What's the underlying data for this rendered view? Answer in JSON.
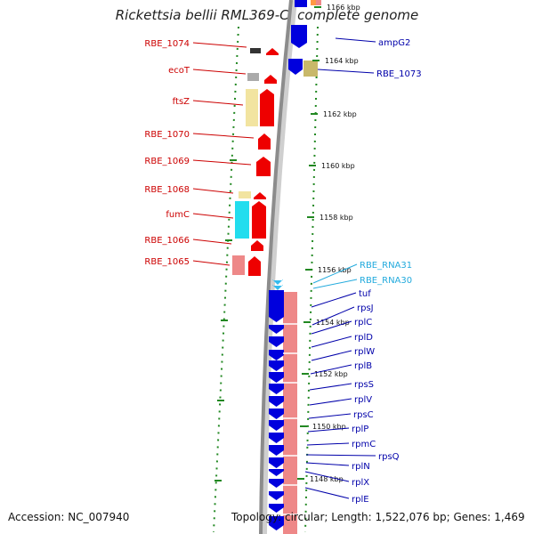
{
  "title": "Rickettsia bellii RML369-C, complete genome",
  "footer": {
    "accession": "Accession: NC_007940",
    "topology": "Topology: circular; Length: 1,522,076 bp; Genes: 1,469"
  },
  "colors": {
    "left_label": "#cc0000",
    "right_label": "#0000aa",
    "rna_label": "#22aadd",
    "forward_gene": "#ee0000",
    "reverse_gene": "#0000dd",
    "pseudo": "#777777",
    "orf_yellow": "#f2e4a0",
    "orf_cyan": "#22ddee",
    "orf_pink": "#ee8888",
    "track_dots": "#228822"
  },
  "scale_ticks": [
    "1166 kbp",
    "1164 kbp",
    "1162 kbp",
    "1160 kbp",
    "1158 kbp",
    "1156 kbp",
    "1154 kbp",
    "1152 kbp",
    "1150 kbp",
    "1148 kbp"
  ],
  "left_genes": [
    "RBE_1074",
    "ecoT",
    "ftsZ",
    "RBE_1070",
    "RBE_1069",
    "RBE_1068",
    "fumC",
    "RBE_1066",
    "RBE_1065"
  ],
  "right_genes": [
    "ampG2",
    "RBE_1073",
    "tuf",
    "rpsJ",
    "rplC",
    "rplD",
    "rplW",
    "rplB",
    "rpsS",
    "rplV",
    "rpsC",
    "rplP",
    "rpmC",
    "rpsQ",
    "rplN",
    "rplX",
    "rplE"
  ],
  "rna_genes": [
    "RBE_RNA31",
    "RBE_RNA30"
  ]
}
